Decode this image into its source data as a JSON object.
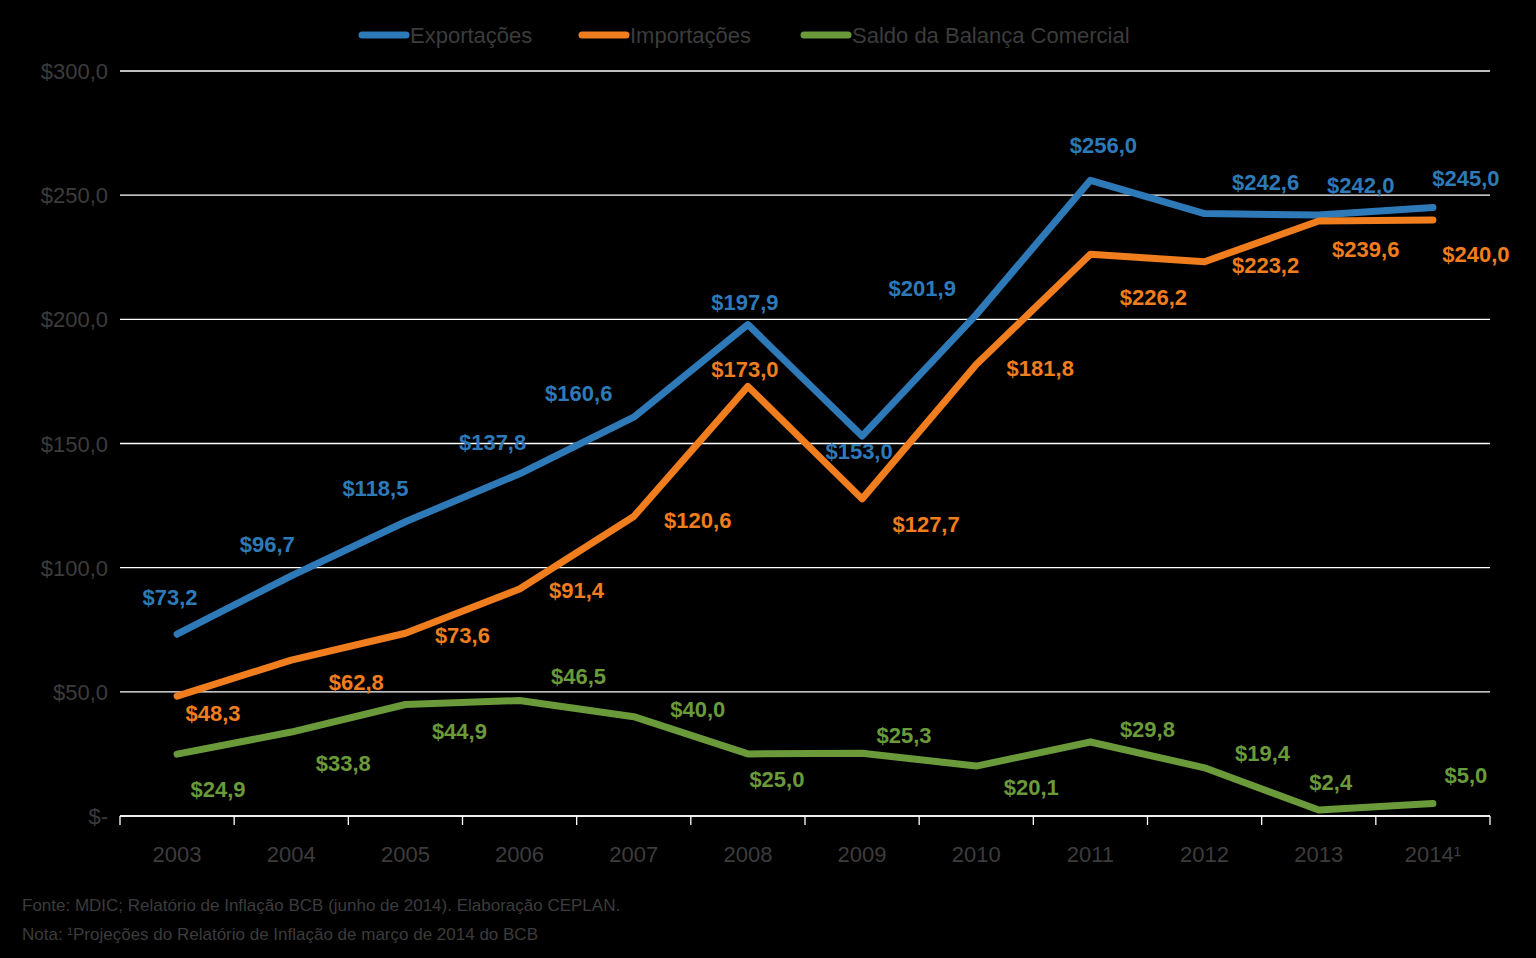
{
  "chart_data": {
    "type": "line",
    "categories": [
      "2003",
      "2004",
      "2005",
      "2006",
      "2007",
      "2008",
      "2009",
      "2010",
      "2011",
      "2012",
      "2013",
      "2014¹"
    ],
    "series": [
      {
        "name": "Exportações",
        "color": "#2e7ab8",
        "values": [
          73.2,
          96.7,
          118.5,
          137.8,
          160.6,
          197.9,
          153.0,
          201.9,
          256.0,
          242.6,
          242.0,
          245.0
        ],
        "value_labels": [
          "$73,2",
          "$96,7",
          "$118,5",
          "$137,8",
          "$160,6",
          "$197,9",
          "$153,0",
          "$201,9",
          "$256,0",
          "$242,6",
          "$242,0",
          "$245,0"
        ]
      },
      {
        "name": "Importações",
        "color": "#f07d1e",
        "values": [
          48.3,
          62.8,
          73.6,
          91.4,
          120.6,
          173.0,
          127.7,
          181.8,
          226.2,
          223.2,
          239.6,
          240.0
        ],
        "value_labels": [
          "$48,3",
          "$62,8",
          "$73,6",
          "$91,4",
          "$120,6",
          "$173,0",
          "$127,7",
          "$181,8",
          "$226,2",
          "$223,2",
          "$239,6",
          "$240,0"
        ]
      },
      {
        "name": "Saldo da Balança Comercial",
        "color": "#6b9a3a",
        "values": [
          24.9,
          33.8,
          44.9,
          46.5,
          40.0,
          25.0,
          25.3,
          20.1,
          29.8,
          19.4,
          2.4,
          5.0
        ],
        "value_labels": [
          "$24,9",
          "$33,8",
          "$44,9",
          "$46,5",
          "$40,0",
          "$25,0",
          "$25,3",
          "$20,1",
          "$29,8",
          "$19,4",
          "$2,4",
          "$5,0"
        ]
      }
    ],
    "ylim": [
      0,
      300
    ],
    "yticks": [
      {
        "value": 0,
        "label": "$-"
      },
      {
        "value": 50,
        "label": "$50,0"
      },
      {
        "value": 100,
        "label": "$100,0"
      },
      {
        "value": 150,
        "label": "$150,0"
      },
      {
        "value": 200,
        "label": "$200,0"
      },
      {
        "value": 250,
        "label": "$250,0"
      },
      {
        "value": 300,
        "label": "$300,0"
      }
    ],
    "grid": true,
    "legend": "top",
    "data_labels": true,
    "annotations": [
      "Fonte: MDIC; Relatório de Inflação BCB (junho de 2014). Elaboração CEPLAN.",
      "Nota: ¹Projeções do Relatório de Inflação de março de 2014 do BCB"
    ]
  }
}
